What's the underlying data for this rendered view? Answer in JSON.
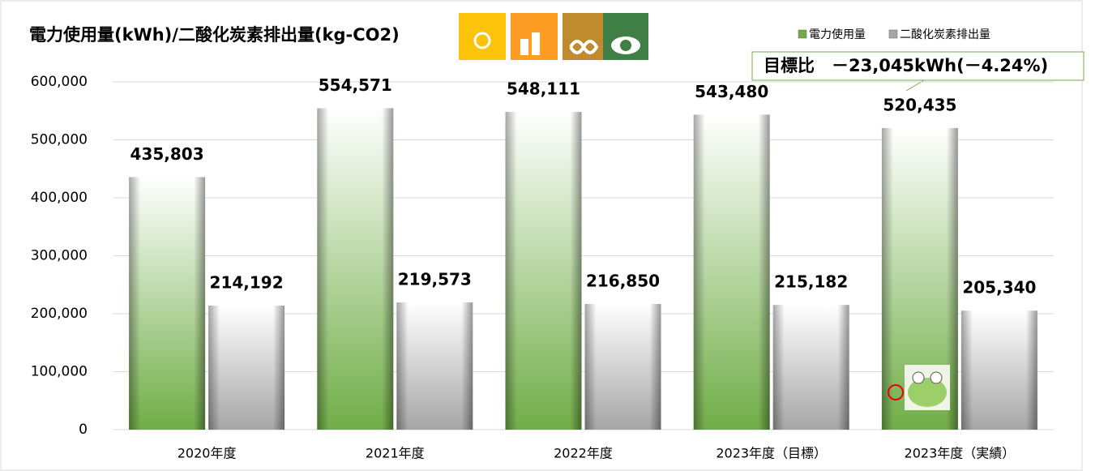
{
  "chart_data": {
    "type": "bar",
    "title": "電力使用量(kWh)/二酸化炭素排出量(kg-CO2)",
    "annotation": "目標比　－23,045kWh(－4.24%)",
    "categories": [
      "2020年度",
      "2021年度",
      "2022年度",
      "2023年度（目標）",
      "2023年度（実績）"
    ],
    "series": [
      {
        "name": "電力使用量",
        "color": "#70ad47",
        "values": [
          435803,
          554571,
          548111,
          543480,
          520435
        ],
        "value_labels": [
          "435,803",
          "554,571",
          "548,111",
          "543,480",
          "520,435"
        ]
      },
      {
        "name": "二酸化炭素排出量",
        "color": "#a6a6a6",
        "values": [
          214192,
          219573,
          216850,
          215182,
          205340
        ],
        "value_labels": [
          "214,192",
          "219,573",
          "216,850",
          "215,182",
          "205,340"
        ]
      }
    ],
    "ylim": [
      0,
      600000
    ],
    "yticks": [
      0,
      {
        "value": 100000,
        "label": "100,000"
      },
      {
        "value": 200000,
        "label": "200,000"
      },
      {
        "value": 300000,
        "label": "300,000"
      },
      {
        "value": 400000,
        "label": "400,000"
      },
      {
        "value": 500000,
        "label": "500,000"
      },
      {
        "value": 600000,
        "label": "600,000"
      }
    ],
    "grid": true,
    "legend": "top-right"
  }
}
